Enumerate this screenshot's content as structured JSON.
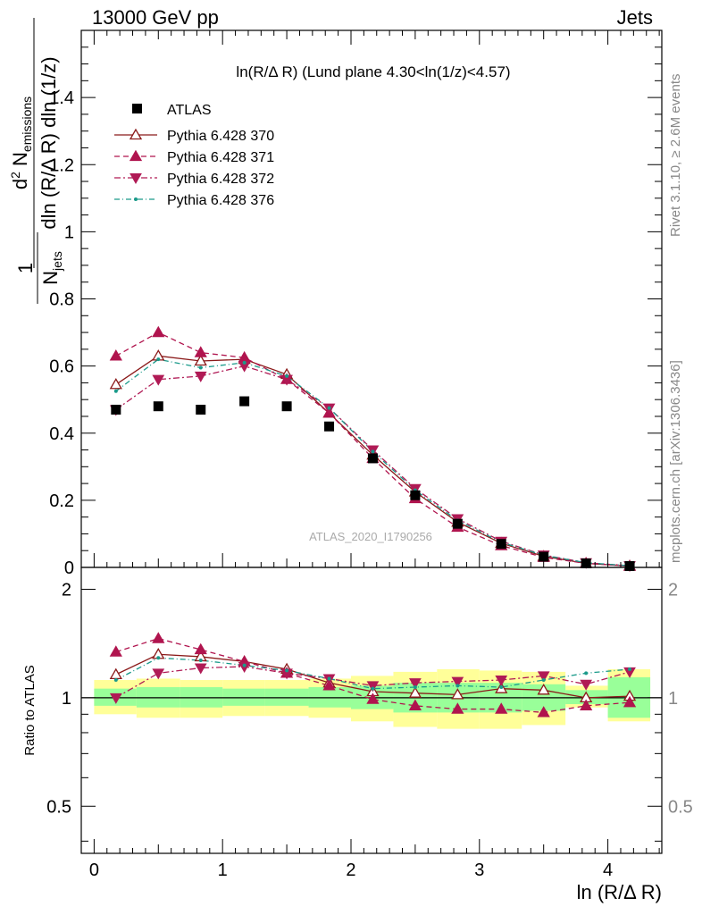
{
  "header": {
    "left": "13000 GeV pp",
    "right": "Jets"
  },
  "side": {
    "rivet": "Rivet 3.1.10, ≥ 2.6M events",
    "mcplots": "mcplots.cern.ch [arXiv:1306.3436]"
  },
  "chart_data": {
    "type": "scatter",
    "title": "ln(R/Δ R) (Lund plane 4.30<ln(1/z)<4.57)",
    "watermark": "ATLAS_2020_I1790256",
    "xlabel": "ln (R/Δ R)",
    "ylabel_main": "1/N_jets d²N_emissions / dln(R/Δ R) dln(1/z)",
    "ylabel_ratio": "Ratio to ATLAS",
    "xlim": [
      -0.1,
      4.42
    ],
    "ylim_main": [
      0,
      1.6
    ],
    "ylim_ratio": [
      0.37,
      2.3
    ],
    "ratio_scale": "log",
    "x_ticks": [
      0,
      1,
      2,
      3,
      4
    ],
    "y_ticks_main": [
      0,
      0.2,
      0.4,
      0.6,
      0.8,
      1,
      1.2,
      1.4
    ],
    "y_ticks_ratio": [
      0.5,
      1,
      2
    ],
    "tick_labels": {
      "x": [
        "0",
        "1",
        "2",
        "3",
        "4"
      ],
      "main": [
        "0",
        "0.2",
        "0.4",
        "0.6",
        "0.8",
        "1",
        "1.2",
        "1.4"
      ],
      "ratio": [
        "0.5",
        "1",
        "2"
      ]
    },
    "x": [
      0.17,
      0.5,
      0.83,
      1.17,
      1.5,
      1.83,
      2.17,
      2.5,
      2.83,
      3.17,
      3.5,
      3.83,
      4.17
    ],
    "atlas": [
      0.47,
      0.48,
      0.47,
      0.495,
      0.48,
      0.42,
      0.325,
      0.215,
      0.13,
      0.07,
      0.032,
      0.012,
      0.004
    ],
    "series": [
      {
        "name": "Pythia 6.428 370",
        "color": "#8b1a1a",
        "marker": "triangle-open",
        "dash": "",
        "values": [
          0.545,
          0.63,
          0.615,
          0.62,
          0.575,
          0.46,
          0.335,
          0.225,
          0.135,
          0.072,
          0.033,
          0.012,
          0.004
        ],
        "ratio": [
          1.16,
          1.32,
          1.3,
          1.26,
          1.2,
          1.1,
          1.04,
          1.03,
          1.02,
          1.06,
          1.05,
          1.0,
          1.01
        ]
      },
      {
        "name": "Pythia 6.428 371",
        "color": "#b0144e",
        "marker": "triangle-up",
        "dash": "6,4",
        "values": [
          0.63,
          0.7,
          0.64,
          0.625,
          0.56,
          0.46,
          0.325,
          0.205,
          0.12,
          0.065,
          0.03,
          0.012,
          0.004
        ],
        "ratio": [
          1.34,
          1.46,
          1.36,
          1.26,
          1.17,
          1.08,
          0.99,
          0.95,
          0.93,
          0.93,
          0.91,
          0.95,
          0.97
        ]
      },
      {
        "name": "Pythia 6.428 372",
        "color": "#b01a55",
        "marker": "triangle-down",
        "dash": "7,3,2,3",
        "values": [
          0.47,
          0.56,
          0.57,
          0.6,
          0.56,
          0.475,
          0.35,
          0.235,
          0.145,
          0.078,
          0.037,
          0.014,
          0.005
        ],
        "ratio": [
          1.0,
          1.17,
          1.21,
          1.22,
          1.17,
          1.13,
          1.08,
          1.1,
          1.11,
          1.12,
          1.15,
          1.09,
          1.18
        ]
      },
      {
        "name": "Pythia 6.428 376",
        "color": "#1a9a8a",
        "marker": "dot",
        "dash": "6,3,1,3",
        "values": [
          0.525,
          0.62,
          0.595,
          0.61,
          0.57,
          0.475,
          0.345,
          0.23,
          0.14,
          0.075,
          0.036,
          0.014,
          0.005
        ],
        "ratio": [
          1.12,
          1.29,
          1.27,
          1.23,
          1.19,
          1.13,
          1.06,
          1.07,
          1.08,
          1.07,
          1.12,
          1.17,
          1.2
        ]
      }
    ],
    "bands": {
      "x_edges": [
        0,
        0.33,
        0.67,
        1.0,
        1.33,
        1.67,
        2.0,
        2.33,
        2.67,
        3.0,
        3.33,
        3.67,
        4.0,
        4.33
      ],
      "green": [
        [
          0.95,
          1.06
        ],
        [
          0.94,
          1.07
        ],
        [
          0.94,
          1.07
        ],
        [
          0.95,
          1.06
        ],
        [
          0.95,
          1.06
        ],
        [
          0.94,
          1.07
        ],
        [
          0.93,
          1.08
        ],
        [
          0.91,
          1.1
        ],
        [
          0.91,
          1.1
        ],
        [
          0.91,
          1.1
        ],
        [
          0.92,
          1.09
        ],
        [
          0.96,
          1.05
        ],
        [
          0.88,
          1.14
        ]
      ],
      "yellow": [
        [
          0.9,
          1.12
        ],
        [
          0.88,
          1.13
        ],
        [
          0.88,
          1.12
        ],
        [
          0.89,
          1.12
        ],
        [
          0.89,
          1.12
        ],
        [
          0.88,
          1.13
        ],
        [
          0.86,
          1.15
        ],
        [
          0.83,
          1.18
        ],
        [
          0.82,
          1.2
        ],
        [
          0.82,
          1.19
        ],
        [
          0.84,
          1.18
        ],
        [
          0.94,
          1.08
        ],
        [
          0.86,
          1.2
        ]
      ]
    }
  }
}
